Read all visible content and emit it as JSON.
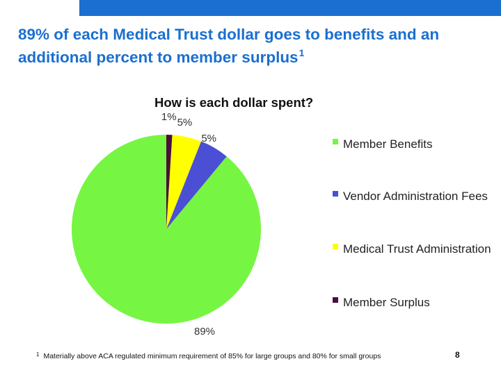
{
  "colors": {
    "top_bar": "#1a6fd0",
    "title": "#1a6fd0"
  },
  "slide": {
    "title": "89% of each Medical Trust dollar goes to benefits and an additional percent to member surplus",
    "title_superscript": "1",
    "footnote_mark": "1",
    "footnote": "Materially above ACA regulated minimum requirement of 85% for large groups and 80% for small groups",
    "page_number": "8"
  },
  "chart_data": {
    "type": "pie",
    "title": "How is each dollar spent?",
    "legend_position": "right",
    "slices": [
      {
        "name": "Member Benefits",
        "value": 89,
        "label": "89%",
        "color": "#76f542"
      },
      {
        "name": "Vendor Administration Fees",
        "value": 5,
        "label": "5%",
        "color": "#4a4fd4"
      },
      {
        "name": "Medical Trust Administration",
        "value": 5,
        "label": "5%",
        "color": "#ffff00"
      },
      {
        "name": "Member Surplus",
        "value": 1,
        "label": "1%",
        "color": "#4b0f3a"
      }
    ]
  }
}
